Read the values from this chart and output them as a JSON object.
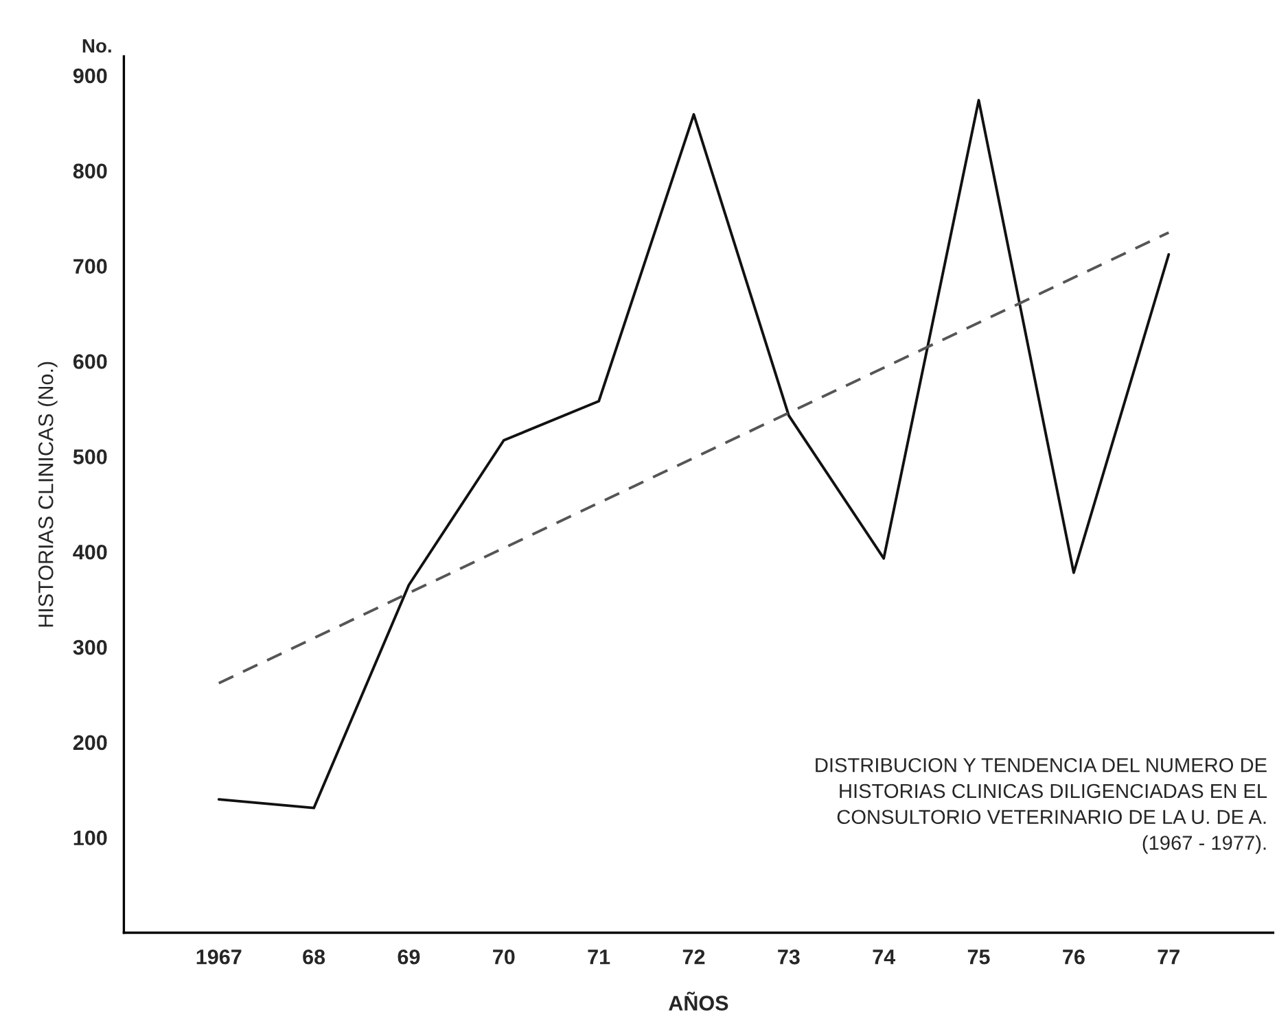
{
  "chart_data": {
    "type": "line",
    "xlabel": "AÑOS",
    "ylabel": "HISTORIAS CLINICAS (No.)",
    "annotations": [
      "No.",
      "DISTRIBUCION Y TENDENCIA DEL NUMERO DE\nHISTORIAS CLINICAS DILIGENCIADAS EN EL\nCONSULTORIO VETERINARIO DE LA U. DE A.\n(1967 - 1977)."
    ],
    "x": [
      1967,
      1968,
      1969,
      1970,
      1971,
      1972,
      1973,
      1974,
      1975,
      1976,
      1977
    ],
    "series": [
      {
        "color": "#111111",
        "line_style": "solid",
        "values": [
          140,
          131,
          365,
          517,
          558,
          859,
          543,
          393,
          874,
          378,
          712
        ]
      },
      {
        "type": "line",
        "color": "#555555",
        "line_style": "dashed",
        "x": [
          1967,
          1977
        ],
        "values": [
          262,
          735
        ]
      }
    ],
    "xlim": [
      1966,
      1978.1
    ],
    "ylim": [
      0,
      920
    ],
    "xticks": [
      1967,
      {
        "value": 1968,
        "label": "68"
      },
      {
        "value": 1969,
        "label": "69"
      },
      {
        "value": 1970,
        "label": "70"
      },
      {
        "value": 1971,
        "label": "71"
      },
      {
        "value": 1972,
        "label": "72"
      },
      {
        "value": 1973,
        "label": "73"
      },
      {
        "value": 1974,
        "label": "74"
      },
      {
        "value": 1975,
        "label": "75"
      },
      {
        "value": 1976,
        "label": "76"
      },
      {
        "value": 1977,
        "label": "77"
      }
    ],
    "yticks": [
      100,
      200,
      300,
      400,
      500,
      600,
      700,
      800,
      900
    ],
    "grid": false,
    "legend": false,
    "marker": "none"
  }
}
